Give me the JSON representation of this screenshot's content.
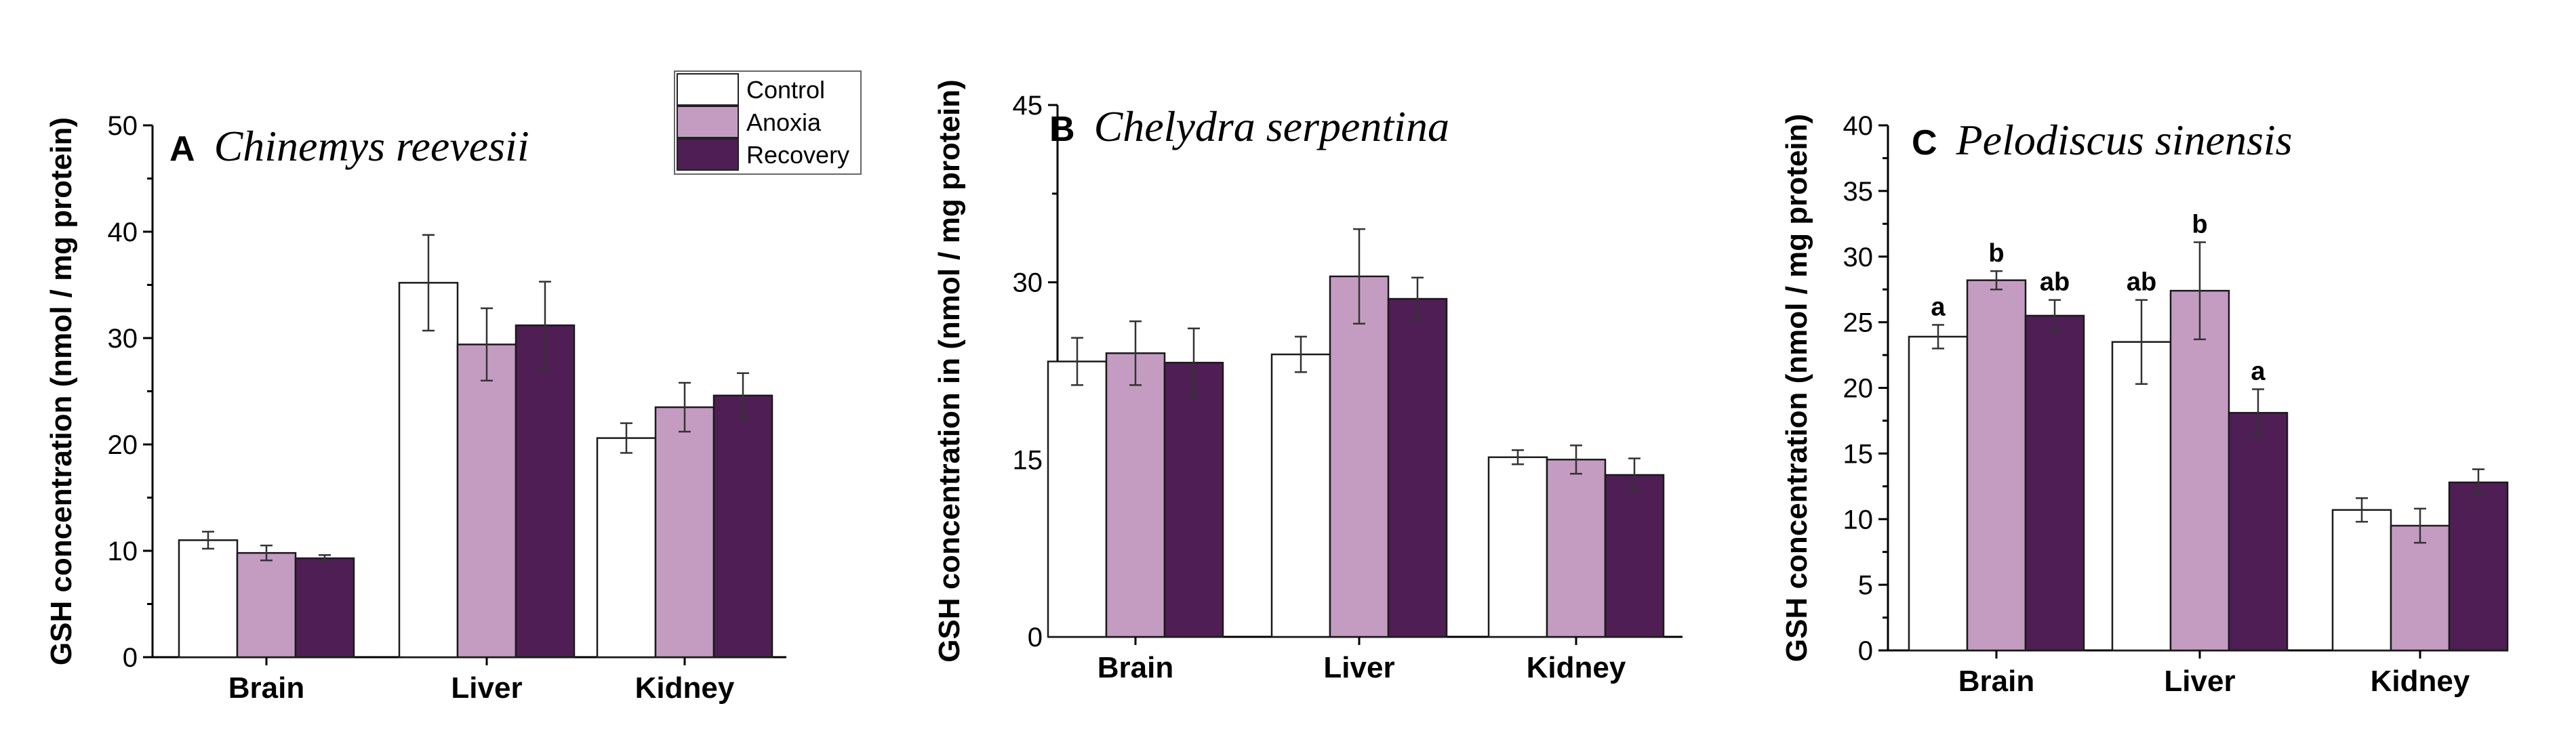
{
  "legend": {
    "items": [
      {
        "label": "Control",
        "color": "#ffffff"
      },
      {
        "label": "Anoxia",
        "color": "#c49cc2"
      },
      {
        "label": "Recovery",
        "color": "#4f1e55"
      }
    ]
  },
  "chart_data": [
    {
      "type": "bar",
      "panel_letter": "A",
      "title": "Chinemys reevesii",
      "ylabel": "GSH concentration (nmol / mg protein)",
      "xlabel": "",
      "ylim": [
        0,
        50
      ],
      "yticks": [
        0,
        10,
        20,
        30,
        40,
        50
      ],
      "minor_ticks": true,
      "categories": [
        "Brain",
        "Liver",
        "Kidney"
      ],
      "series": [
        {
          "name": "Control",
          "color": "#ffffff",
          "values": [
            11.0,
            35.2,
            20.6
          ],
          "errors": [
            0.8,
            4.5,
            1.4
          ],
          "labels": [
            "",
            "",
            ""
          ]
        },
        {
          "name": "Anoxia",
          "color": "#c49cc2",
          "values": [
            9.8,
            29.4,
            23.5
          ],
          "errors": [
            0.7,
            3.4,
            2.3
          ],
          "labels": [
            "",
            "",
            ""
          ]
        },
        {
          "name": "Recovery",
          "color": "#4f1e55",
          "values": [
            9.3,
            31.2,
            24.6
          ],
          "errors": [
            0.3,
            4.1,
            2.1
          ],
          "labels": [
            "",
            "",
            ""
          ]
        }
      ]
    },
    {
      "type": "bar",
      "panel_letter": "B",
      "title": "Chelydra serpentina",
      "ylabel": "GSH concentration in (nmol / mg protein)",
      "xlabel": "",
      "ylim": [
        0,
        45
      ],
      "yticks": [
        0,
        15,
        30,
        45
      ],
      "minor_ticks": true,
      "categories": [
        "Brain",
        "Liver",
        "Kidney"
      ],
      "series": [
        {
          "name": "Control",
          "color": "#ffffff",
          "values": [
            23.3,
            23.9,
            15.2
          ],
          "errors": [
            2.0,
            1.5,
            0.6
          ],
          "labels": [
            "",
            "",
            ""
          ]
        },
        {
          "name": "Anoxia",
          "color": "#c49cc2",
          "values": [
            24.0,
            30.5,
            15.0
          ],
          "errors": [
            2.7,
            4.0,
            1.2
          ],
          "labels": [
            "",
            "",
            ""
          ]
        },
        {
          "name": "Recovery",
          "color": "#4f1e55",
          "values": [
            23.2,
            28.6,
            13.7
          ],
          "errors": [
            2.9,
            1.8,
            1.4
          ],
          "labels": [
            "",
            "",
            ""
          ]
        }
      ]
    },
    {
      "type": "bar",
      "panel_letter": "C",
      "title": "Pelodiscus sinensis",
      "ylabel": "GSH concentration (nmol / mg protein)",
      "xlabel": "",
      "ylim": [
        0,
        40
      ],
      "yticks": [
        0,
        5,
        10,
        15,
        20,
        25,
        30,
        35,
        40
      ],
      "minor_ticks": true,
      "categories": [
        "Brain",
        "Liver",
        "Kidney"
      ],
      "series": [
        {
          "name": "Control",
          "color": "#ffffff",
          "values": [
            23.9,
            23.5,
            10.7
          ],
          "errors": [
            0.9,
            3.2,
            0.9
          ],
          "labels": [
            "a",
            "ab",
            ""
          ]
        },
        {
          "name": "Anoxia",
          "color": "#c49cc2",
          "values": [
            28.2,
            27.4,
            9.5
          ],
          "errors": [
            0.7,
            3.7,
            1.3
          ],
          "labels": [
            "b",
            "b",
            ""
          ]
        },
        {
          "name": "Recovery",
          "color": "#4f1e55",
          "values": [
            25.5,
            18.1,
            12.8
          ],
          "errors": [
            1.2,
            1.8,
            1.0
          ],
          "labels": [
            "ab",
            "a",
            ""
          ]
        }
      ]
    }
  ]
}
